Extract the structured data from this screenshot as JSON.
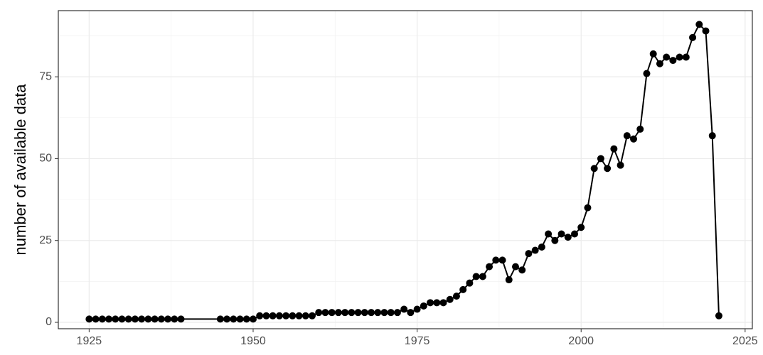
{
  "chart_data": {
    "type": "line",
    "y_label": "number of available data",
    "color": "#000000",
    "grid": true,
    "xlim": [
      1920.3,
      2026.1
    ],
    "ylim": [
      -1.95,
      95.2
    ],
    "xticks": [
      1925,
      1950,
      1975,
      2000,
      2025
    ],
    "yticks": [
      0,
      25,
      50,
      75
    ],
    "xminor": [
      1937.5,
      1962.5,
      1987.5,
      2012.5
    ],
    "yminor": [
      12.5,
      37.5,
      62.5,
      87.5
    ],
    "x": [
      1925,
      1926,
      1927,
      1928,
      1929,
      1930,
      1931,
      1932,
      1933,
      1934,
      1935,
      1936,
      1937,
      1938,
      1939,
      1945,
      1946,
      1947,
      1948,
      1949,
      1950,
      1951,
      1952,
      1953,
      1954,
      1955,
      1956,
      1957,
      1958,
      1959,
      1960,
      1961,
      1962,
      1963,
      1964,
      1965,
      1966,
      1967,
      1968,
      1969,
      1970,
      1971,
      1972,
      1973,
      1974,
      1975,
      1976,
      1977,
      1978,
      1979,
      1980,
      1981,
      1982,
      1983,
      1984,
      1985,
      1986,
      1987,
      1988,
      1989,
      1990,
      1991,
      1992,
      1993,
      1994,
      1995,
      1996,
      1997,
      1998,
      1999,
      2000,
      2001,
      2002,
      2003,
      2004,
      2005,
      2006,
      2007,
      2008,
      2009,
      2010,
      2011,
      2012,
      2013,
      2014,
      2015,
      2016,
      2017,
      2018,
      2019,
      2020,
      2021
    ],
    "values": [
      1,
      1,
      1,
      1,
      1,
      1,
      1,
      1,
      1,
      1,
      1,
      1,
      1,
      1,
      1,
      1,
      1,
      1,
      1,
      1,
      1,
      2,
      2,
      2,
      2,
      2,
      2,
      2,
      2,
      2,
      3,
      3,
      3,
      3,
      3,
      3,
      3,
      3,
      3,
      3,
      3,
      3,
      3,
      4,
      3,
      4,
      5,
      6,
      6,
      6,
      7,
      8,
      10,
      12,
      14,
      14,
      17,
      19,
      19,
      13,
      17,
      16,
      21,
      22,
      23,
      27,
      25,
      27,
      26,
      27,
      29,
      35,
      47,
      50,
      47,
      53,
      48,
      57,
      56,
      59,
      76,
      82,
      79,
      81,
      80,
      81,
      81,
      87,
      91,
      89,
      57,
      2
    ]
  }
}
